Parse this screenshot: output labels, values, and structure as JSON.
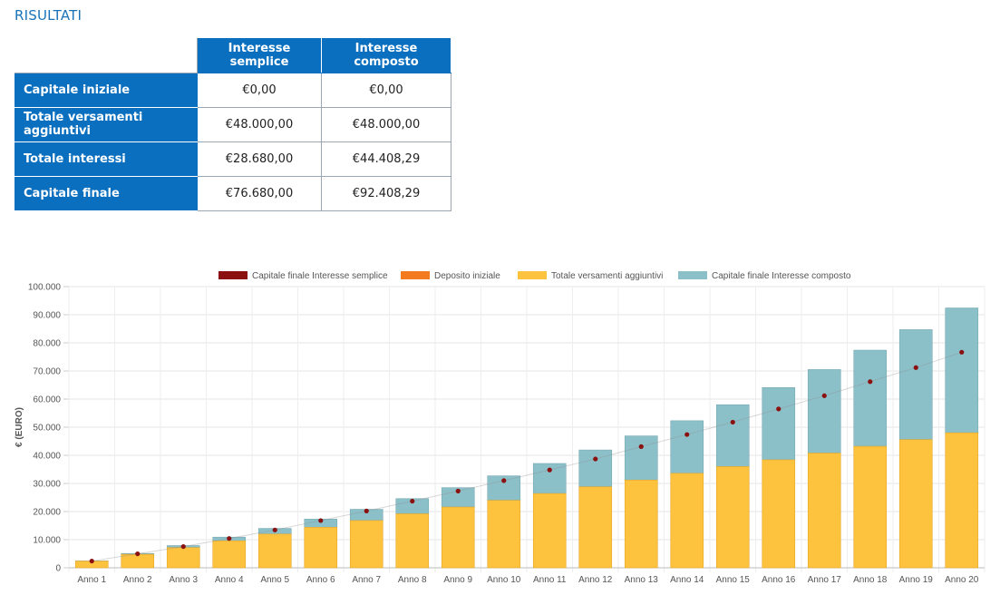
{
  "results": {
    "title": "RISULTATI",
    "col_headers": [
      "Interesse semplice",
      "Interesse composto"
    ],
    "rows": [
      {
        "label": "Capitale iniziale",
        "semplice": "€0,00",
        "composto": "€0,00"
      },
      {
        "label": "Totale versamenti aggiuntivi",
        "semplice": "€48.000,00",
        "composto": "€48.000,00"
      },
      {
        "label": "Totale interessi",
        "semplice": "€28.680,00",
        "composto": "€44.408,29"
      },
      {
        "label": "Capitale finale",
        "semplice": "€76.680,00",
        "composto": "€92.408,29"
      }
    ]
  },
  "chart_data": {
    "type": "bar",
    "title": "",
    "xlabel": "",
    "ylabel": "€ (EURO)",
    "ylim": [
      0,
      100000
    ],
    "yticks": [
      "0",
      "10.000",
      "20.000",
      "30.000",
      "40.000",
      "50.000",
      "60.000",
      "70.000",
      "80.000",
      "90.000",
      "100.000"
    ],
    "grid": true,
    "legend_position": "top",
    "categories": [
      "Anno 1",
      "Anno 2",
      "Anno 3",
      "Anno 4",
      "Anno 5",
      "Anno 6",
      "Anno 7",
      "Anno 8",
      "Anno 9",
      "Anno 10",
      "Anno 11",
      "Anno 12",
      "Anno 13",
      "Anno 14",
      "Anno 15",
      "Anno 16",
      "Anno 17",
      "Anno 18",
      "Anno 19",
      "Anno 20"
    ],
    "series": [
      {
        "name": "Capitale finale Interesse semplice",
        "kind": "point",
        "color": "#8b1010",
        "values": [
          2400,
          4970,
          7550,
          10430,
          13450,
          16800,
          20200,
          23700,
          27300,
          31000,
          34800,
          38700,
          43100,
          47400,
          51800,
          56500,
          61200,
          66200,
          71200,
          76680
        ]
      },
      {
        "name": "Deposito iniziale",
        "kind": "bar-stack",
        "color": "#f47a20",
        "values": [
          0,
          0,
          0,
          0,
          0,
          0,
          0,
          0,
          0,
          0,
          0,
          0,
          0,
          0,
          0,
          0,
          0,
          0,
          0,
          0
        ]
      },
      {
        "name": "Totale versamenti aggiuntivi",
        "kind": "bar-stack",
        "color": "#fdc23e",
        "values": [
          2400,
          4800,
          7200,
          9600,
          12000,
          14400,
          16800,
          19200,
          21600,
          24000,
          26400,
          28800,
          31200,
          33600,
          36000,
          38400,
          40800,
          43200,
          45600,
          48000
        ]
      },
      {
        "name": "Capitale finale Interesse composto",
        "kind": "bar-total",
        "color": "#8cc0c9",
        "values": [
          2450,
          5100,
          7900,
          10900,
          14000,
          17300,
          20800,
          24600,
          28500,
          32700,
          37100,
          41900,
          46900,
          52300,
          58000,
          64100,
          70500,
          77400,
          84700,
          92408
        ]
      }
    ]
  }
}
